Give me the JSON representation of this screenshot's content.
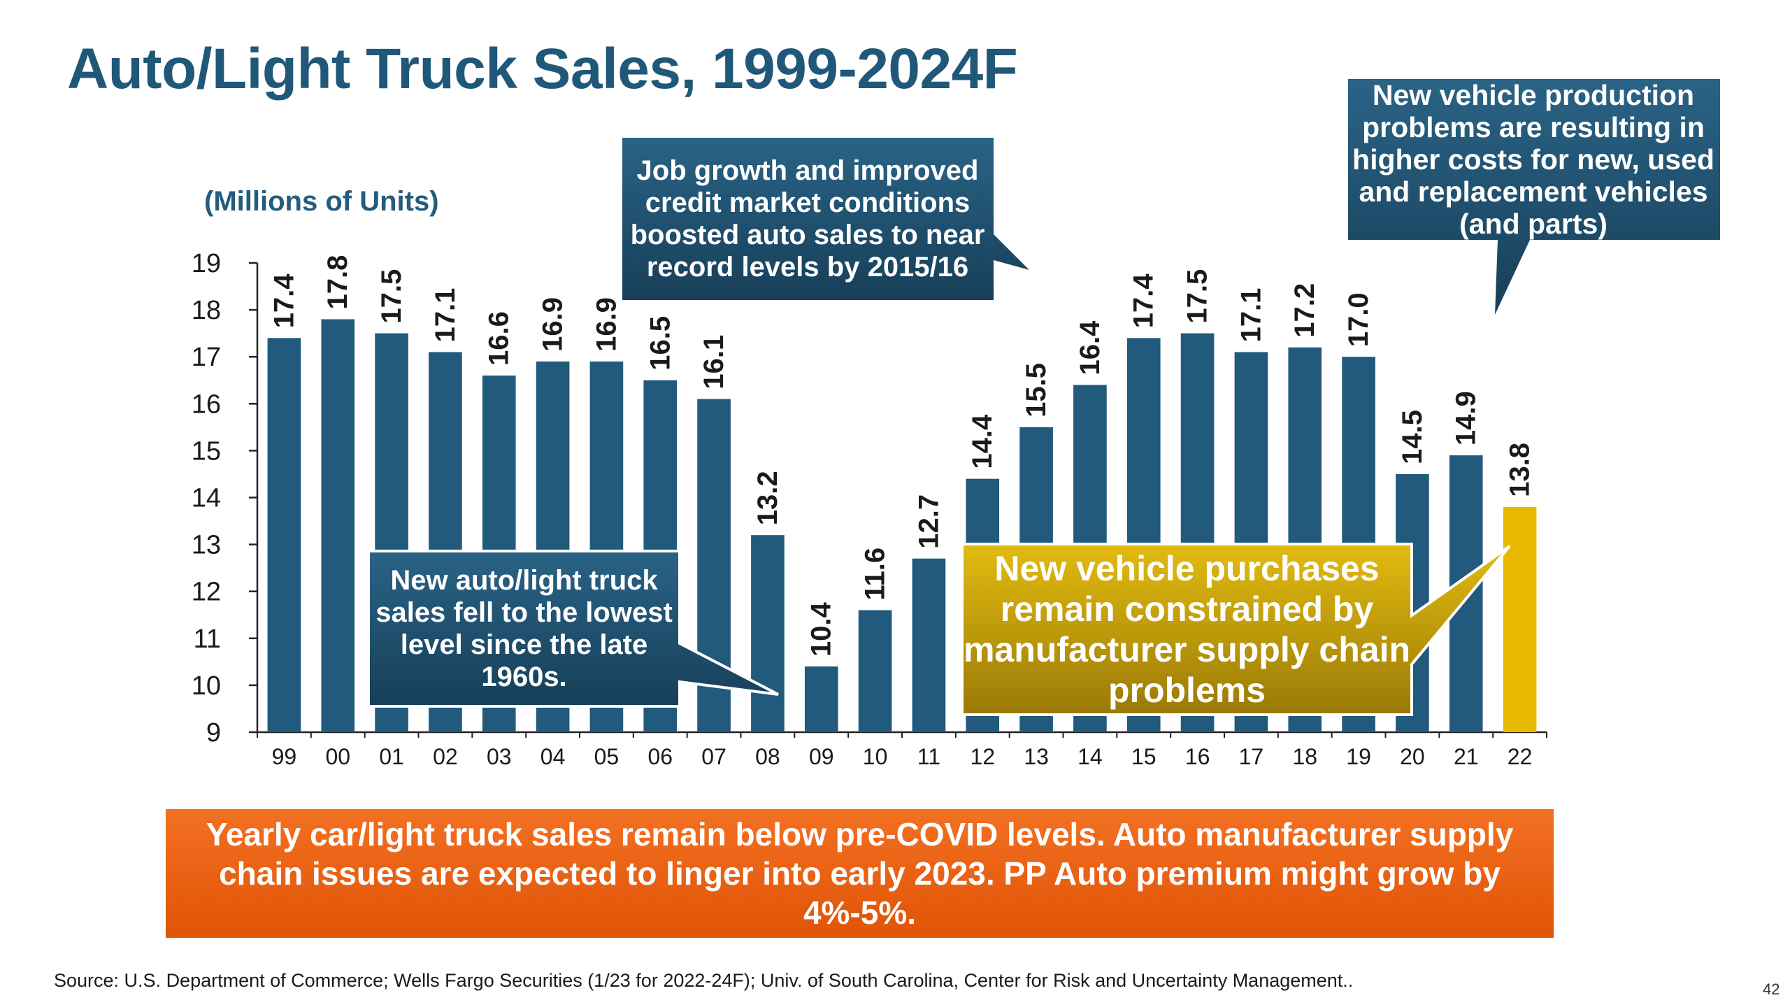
{
  "slide": {
    "title": "Auto/Light Truck Sales, 1999-2024F",
    "unit_label": "(Millions of Units)",
    "source": "Source: U.S. Department of Commerce; Wells Fargo Securities (1/23 for 2022-24F); Univ. of South Carolina, Center for Risk and Uncertainty Management..",
    "page_number": "42",
    "banner": "Yearly car/light truck sales remain below pre-COVID levels.  Auto manufacturer supply chain issues are expected to linger into early 2023.  PP Auto premium might grow by 4%-5%.",
    "callouts": {
      "job_growth": "Job growth and improved credit market conditions boosted auto sales to near record levels by 2015/16",
      "production": "New vehicle production problems are resulting in higher costs for new, used and replacement vehicles (and parts)",
      "fell": "New auto/light truck sales fell to the lowest level since the late 1960s.",
      "purchases": "New vehicle purchases remain constrained by manufacturer supply chain problems"
    }
  },
  "chart_data": {
    "type": "bar",
    "title": "Auto/Light Truck Sales, 1999-2024F",
    "ylabel": "(Millions of Units)",
    "xlabel": "",
    "ylim": [
      9,
      19
    ],
    "yticks": [
      9,
      10,
      11,
      12,
      13,
      14,
      15,
      16,
      17,
      18,
      19
    ],
    "categories": [
      "99",
      "00",
      "01",
      "02",
      "03",
      "04",
      "05",
      "06",
      "07",
      "08",
      "09",
      "10",
      "11",
      "12",
      "13",
      "14",
      "15",
      "16",
      "17",
      "18",
      "19",
      "20",
      "21",
      "22"
    ],
    "values": [
      17.4,
      17.8,
      17.5,
      17.1,
      16.6,
      16.9,
      16.9,
      16.5,
      16.1,
      13.2,
      10.4,
      11.6,
      12.7,
      14.4,
      15.5,
      16.4,
      17.4,
      17.5,
      17.1,
      17.2,
      17.0,
      14.5,
      14.9,
      13.8
    ],
    "data_labels": [
      "17.4",
      "17.8",
      "17.5",
      "17.1",
      "16.6",
      "16.9",
      "16.9",
      "16.5",
      "16.1",
      "13.2",
      "10.4",
      "11.6",
      "12.7",
      "14.4",
      "15.5",
      "16.4",
      "17.4",
      "17.5",
      "17.1",
      "17.2",
      "17.0",
      "14.5",
      "14.9",
      "13.8"
    ],
    "highlight_category": "22",
    "grid": false,
    "colors": {
      "bar": "#215a7c",
      "highlight": "#e8b800",
      "label": "#1a1a1a"
    }
  }
}
